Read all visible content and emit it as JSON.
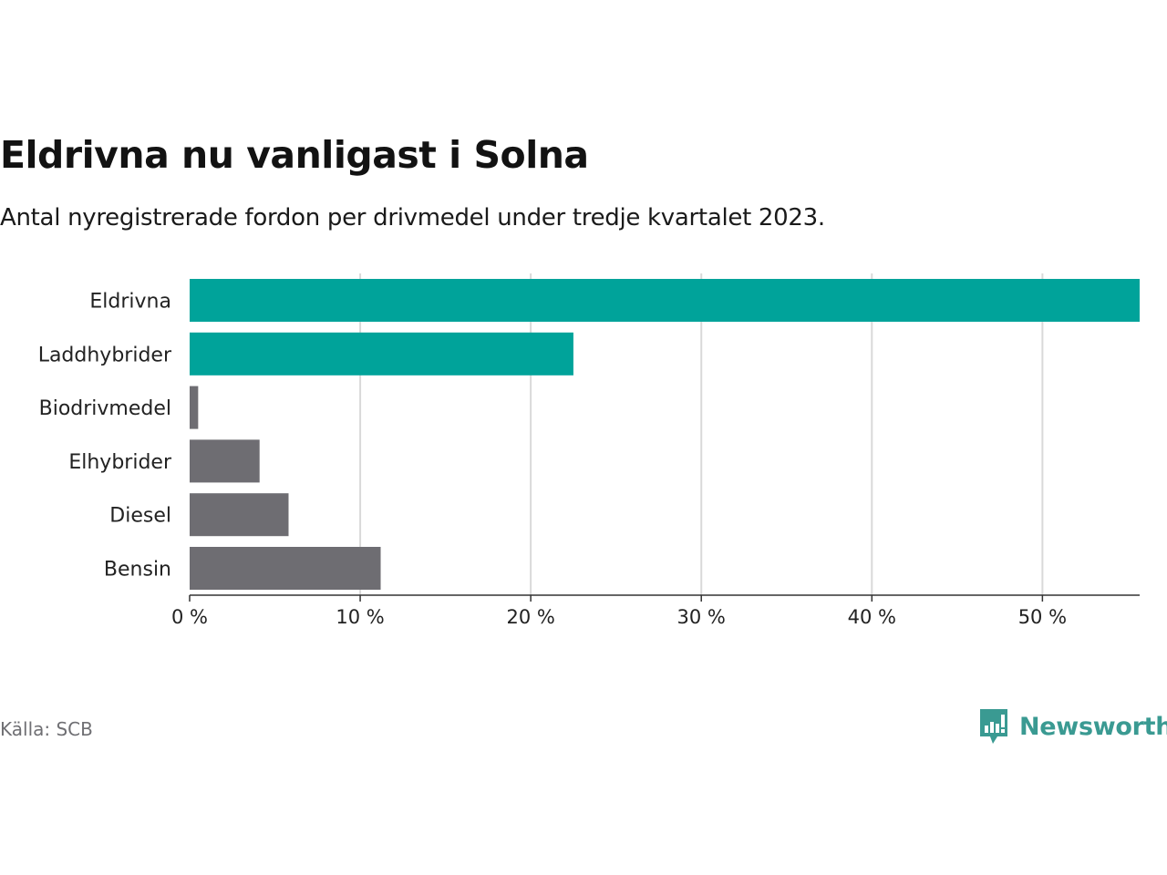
{
  "header": {
    "title": "Eldrivna nu vanligast i Solna",
    "subtitle": "Antal nyregistrerade fordon per drivmedel under tredje kvartalet 2023."
  },
  "footer": {
    "source": "Källa: SCB",
    "brand": "Newsworthy"
  },
  "colors": {
    "highlight": "#00a39a",
    "default": "#6e6d72",
    "grid": "#d9d9d9",
    "brand": "#3a9a92"
  },
  "chart_data": {
    "type": "bar",
    "orientation": "horizontal",
    "title": "Eldrivna nu vanligast i Solna",
    "subtitle": "Antal nyregistrerade fordon per drivmedel under tredje kvartalet 2023.",
    "xlabel": "",
    "ylabel": "",
    "unit": "%",
    "categories": [
      "Eldrivna",
      "Laddhybrider",
      "Biodrivmedel",
      "Elhybrider",
      "Diesel",
      "Bensin"
    ],
    "values": [
      55.7,
      22.5,
      0.5,
      4.1,
      5.8,
      11.2
    ],
    "highlighted": [
      true,
      true,
      false,
      false,
      false,
      false
    ],
    "xlim": [
      0,
      55.7
    ],
    "xticks": [
      0,
      10,
      20,
      30,
      40,
      50
    ],
    "xtick_labels": [
      "0 %",
      "10 %",
      "20 %",
      "30 %",
      "40 %",
      "50 %"
    ],
    "grid": true
  }
}
